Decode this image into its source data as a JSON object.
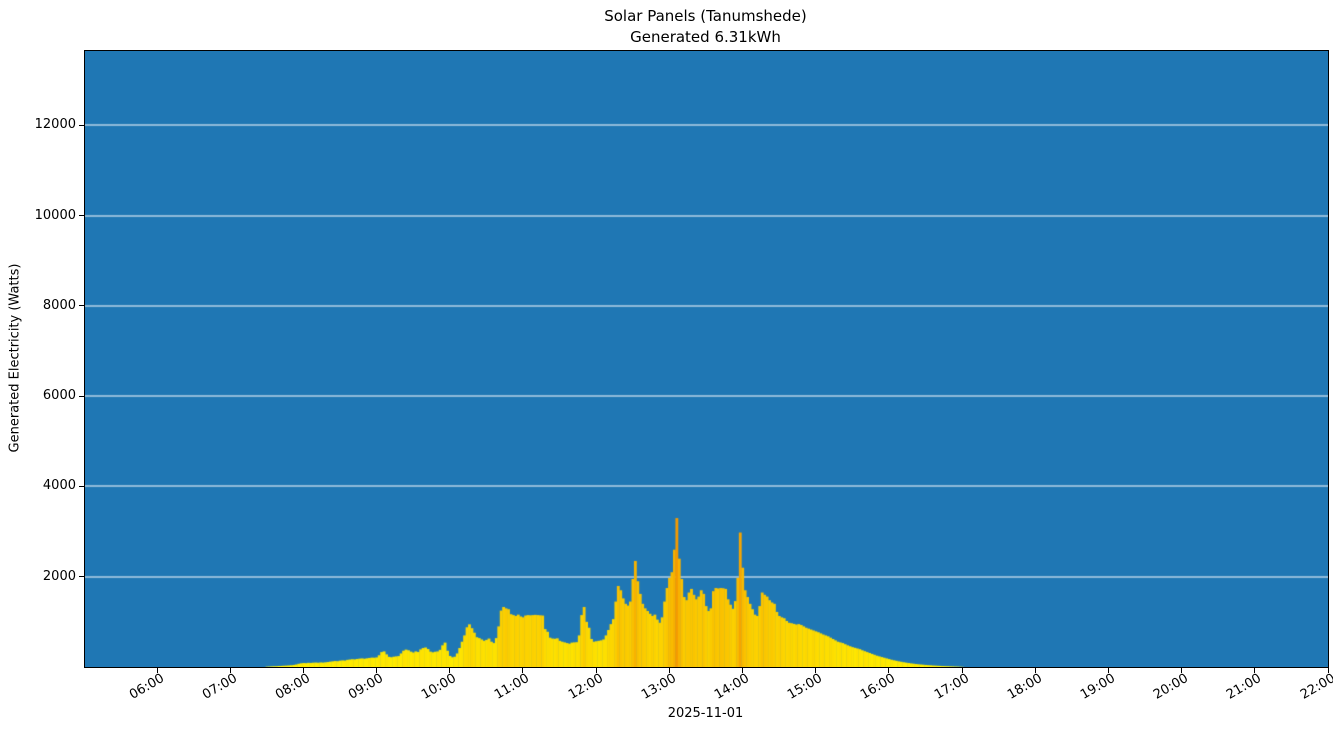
{
  "chart_data": {
    "type": "bar",
    "title": "Solar Panels (Tanumshede)",
    "subtitle": "Generated 6.31kWh",
    "xlabel": "2025-11-01",
    "ylabel": "Generated Electricity (Watts)",
    "x_ticks": [
      "06:00",
      "07:00",
      "08:00",
      "09:00",
      "10:00",
      "11:00",
      "12:00",
      "13:00",
      "14:00",
      "15:00",
      "16:00",
      "17:00",
      "18:00",
      "19:00",
      "20:00",
      "21:00",
      "22:00"
    ],
    "y_ticks": [
      2000,
      4000,
      6000,
      8000,
      10000,
      12000
    ],
    "x_domain_hours": [
      5.016,
      22.0
    ],
    "ylim": [
      0,
      13650
    ],
    "grid": {
      "horizontal": true,
      "vertical": false,
      "color": "#ffffff"
    },
    "legend": "none",
    "colors": {
      "figure_bg": "#ffffff",
      "plot_bg": "#1f77b4",
      "grid": "#ffffff",
      "bar_low": "#ffee00",
      "bar_high": "#f59b00",
      "axis": "#000000",
      "tick_text": "#000000"
    },
    "color_scale_max_watts": 3400,
    "series": {
      "name": "Generated Electricity",
      "unit": "W",
      "start_time": "07:30",
      "interval_minutes": 2,
      "values": [
        8,
        10,
        14,
        16,
        18,
        22,
        24,
        28,
        30,
        34,
        38,
        45,
        55,
        70,
        82,
        88,
        85,
        92,
        90,
        95,
        98,
        94,
        100,
        97,
        103,
        110,
        118,
        125,
        132,
        128,
        140,
        145,
        142,
        158,
        165,
        172,
        168,
        178,
        185,
        190,
        182,
        192,
        200,
        208,
        205,
        212,
        260,
        330,
        345,
        280,
        225,
        215,
        228,
        235,
        242,
        300,
        360,
        385,
        370,
        340,
        320,
        345,
        332,
        390,
        420,
        432,
        398,
        340,
        325,
        338,
        345,
        380,
        480,
        540,
        360,
        245,
        215,
        228,
        300,
        420,
        560,
        700,
        880,
        945,
        860,
        760,
        660,
        640,
        610,
        580,
        600,
        630,
        560,
        530,
        640,
        900,
        1250,
        1330,
        1300,
        1280,
        1170,
        1150,
        1130,
        1160,
        1120,
        1100,
        1140,
        1150,
        1145,
        1150,
        1155,
        1150,
        1145,
        1140,
        840,
        780,
        650,
        630,
        625,
        635,
        580,
        560,
        545,
        530,
        515,
        540,
        545,
        550,
        700,
        1150,
        1330,
        1000,
        870,
        620,
        560,
        570,
        580,
        590,
        610,
        700,
        820,
        950,
        1060,
        1450,
        1795,
        1700,
        1520,
        1400,
        1360,
        1450,
        1950,
        2350,
        1900,
        1620,
        1400,
        1300,
        1240,
        1180,
        1130,
        1160,
        1050,
        980,
        1100,
        1450,
        1750,
        1975,
        2100,
        2600,
        3300,
        2400,
        1950,
        1550,
        1480,
        1650,
        1730,
        1600,
        1500,
        1560,
        1700,
        1620,
        1350,
        1240,
        1300,
        1680,
        1750,
        1740,
        1750,
        1745,
        1730,
        1500,
        1380,
        1290,
        1460,
        1975,
        2980,
        2200,
        1700,
        1550,
        1400,
        1280,
        1160,
        1130,
        1350,
        1650,
        1600,
        1560,
        1480,
        1430,
        1400,
        1220,
        1130,
        1100,
        1080,
        1020,
        980,
        970,
        955,
        940,
        950,
        930,
        900,
        870,
        850,
        830,
        810,
        790,
        770,
        745,
        720,
        700,
        680,
        650,
        620,
        590,
        560,
        545,
        530,
        505,
        480,
        460,
        440,
        425,
        410,
        395,
        370,
        350,
        330,
        310,
        290,
        270,
        250,
        235,
        220,
        205,
        190,
        175,
        160,
        148,
        136,
        125,
        115,
        105,
        96,
        88,
        80,
        73,
        66,
        60,
        55,
        50,
        45,
        41,
        37,
        33,
        30,
        27,
        24,
        21,
        19,
        17,
        15,
        13,
        11,
        9,
        7,
        5
      ]
    }
  }
}
